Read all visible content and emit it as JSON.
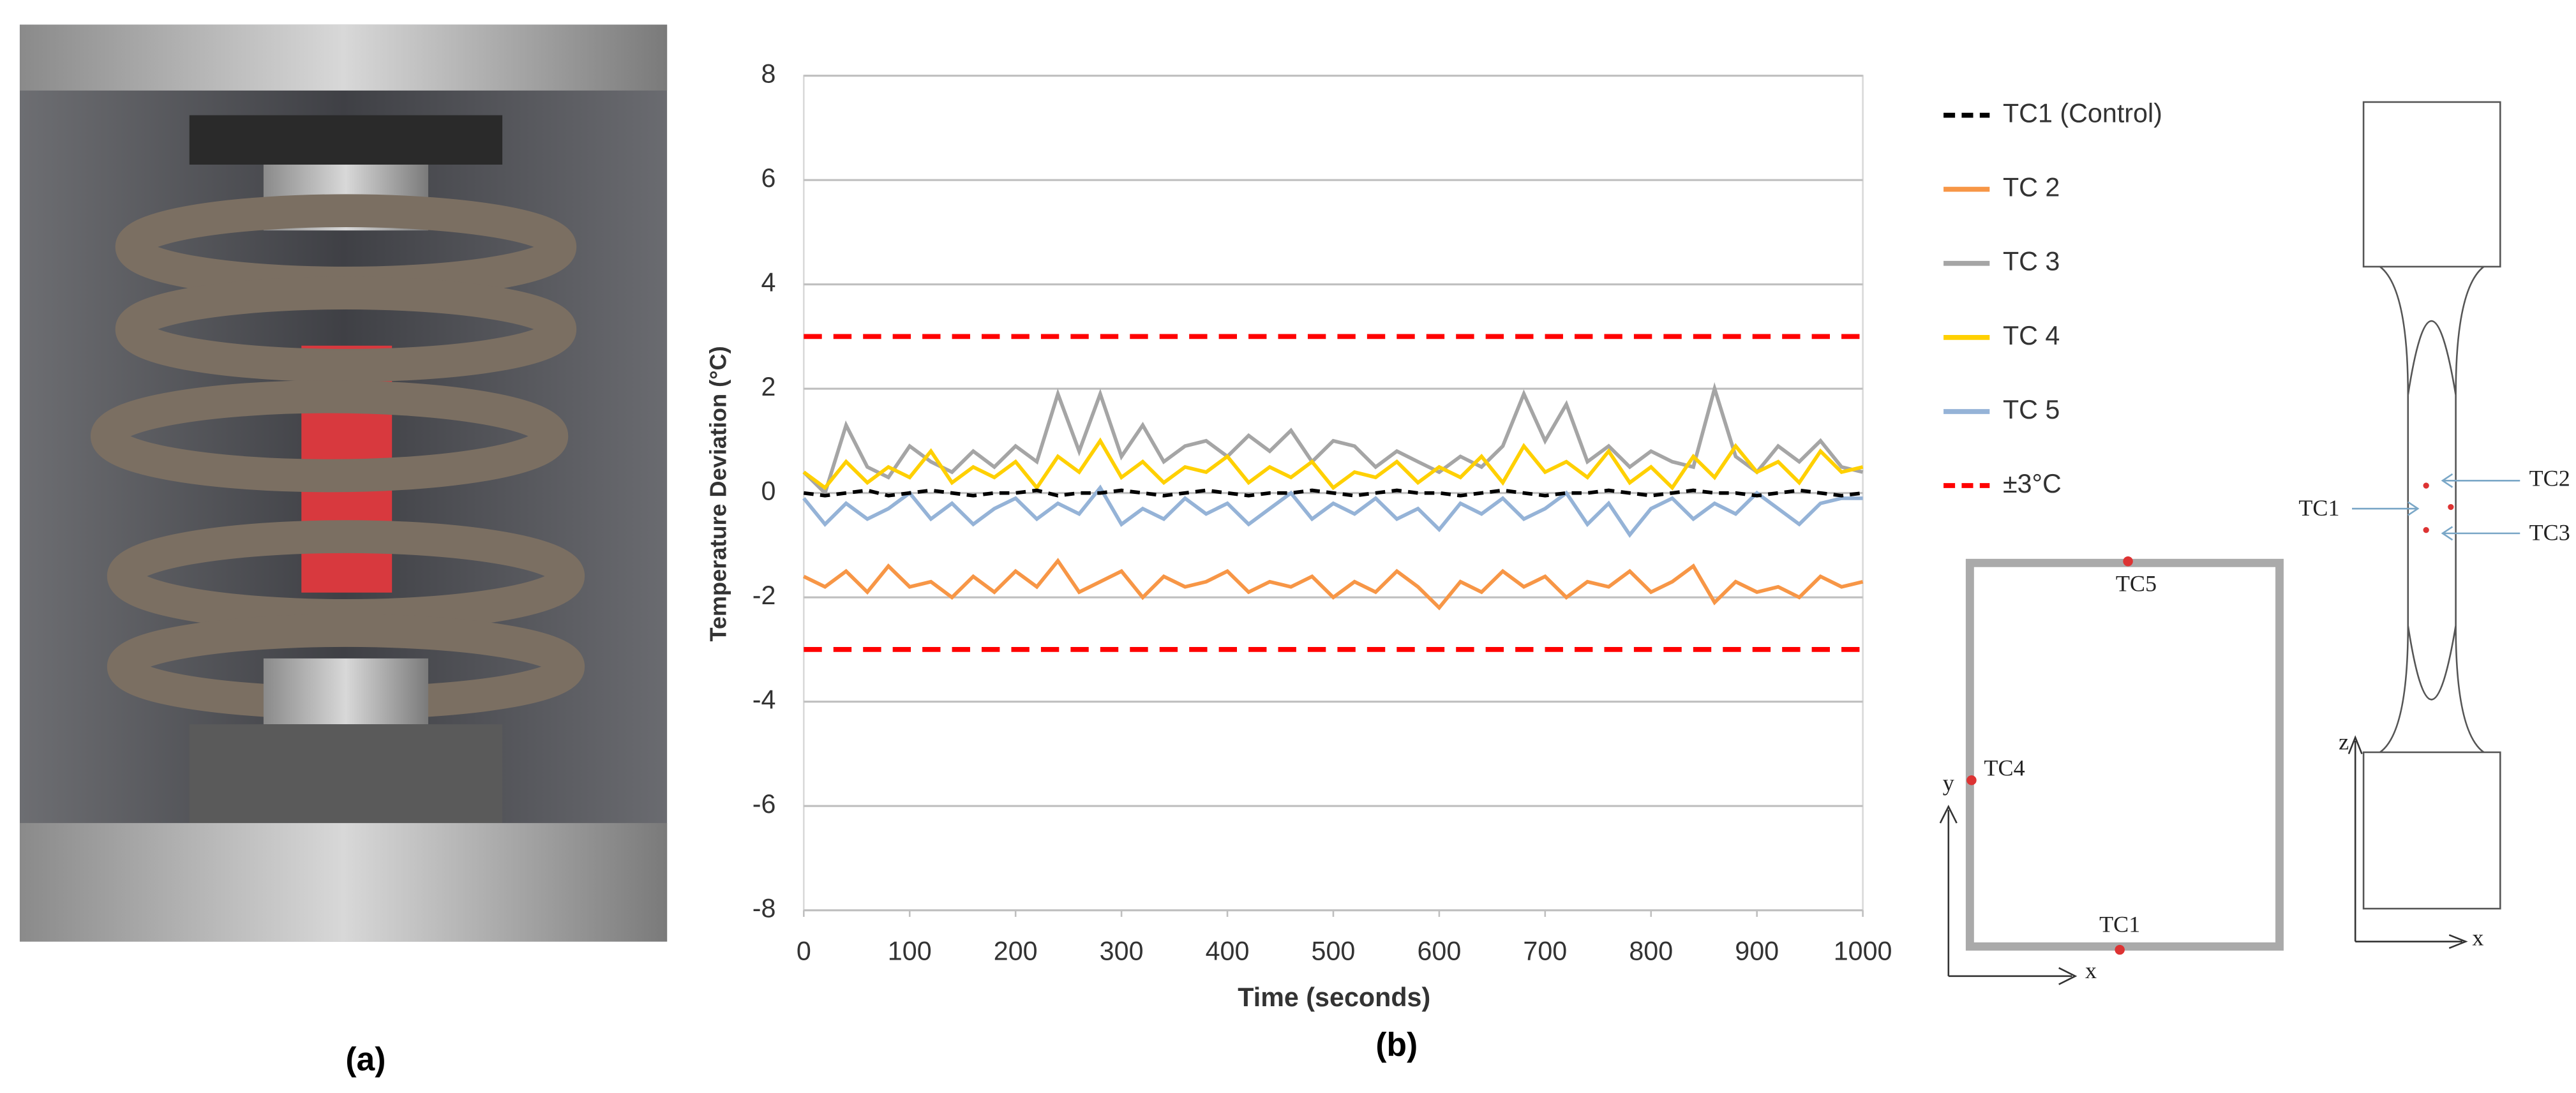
{
  "panels": [
    "(a)",
    "(b)"
  ],
  "chart_data": {
    "type": "line",
    "xlabel": "Time (seconds)",
    "ylabel": "Temperature Deviation (°C)",
    "xlim": [
      0,
      1000
    ],
    "ylim": [
      -8,
      8
    ],
    "xticks": [
      0,
      100,
      200,
      300,
      400,
      500,
      600,
      700,
      800,
      900,
      1000
    ],
    "yticks": [
      -8,
      -6,
      -4,
      -2,
      0,
      2,
      4,
      6,
      8
    ],
    "grid": true,
    "x": [
      0,
      20,
      40,
      60,
      80,
      100,
      120,
      140,
      160,
      180,
      200,
      220,
      240,
      260,
      280,
      300,
      320,
      340,
      360,
      380,
      400,
      420,
      440,
      460,
      480,
      500,
      520,
      540,
      560,
      580,
      600,
      620,
      640,
      660,
      680,
      700,
      720,
      740,
      760,
      780,
      800,
      820,
      840,
      860,
      880,
      900,
      920,
      940,
      960,
      980,
      1000
    ],
    "series": [
      {
        "name": "TC1 (Control)",
        "color": "#000000",
        "dashed": true,
        "values": [
          0,
          -0.05,
          0,
          0.05,
          -0.05,
          0,
          0.05,
          0,
          -0.05,
          0,
          0,
          0.05,
          -0.05,
          0,
          0,
          0.05,
          0,
          -0.05,
          0,
          0.05,
          0,
          -0.05,
          0,
          0,
          0.05,
          0,
          -0.05,
          0,
          0.05,
          0,
          0,
          -0.05,
          0,
          0.05,
          0,
          -0.05,
          0,
          0,
          0.05,
          0,
          -0.05,
          0,
          0.05,
          0,
          0,
          -0.05,
          0,
          0.05,
          0,
          -0.05,
          0
        ]
      },
      {
        "name": "TC 2",
        "color": "#f79646",
        "dashed": false,
        "values": [
          -1.6,
          -1.8,
          -1.5,
          -1.9,
          -1.4,
          -1.8,
          -1.7,
          -2.0,
          -1.6,
          -1.9,
          -1.5,
          -1.8,
          -1.3,
          -1.9,
          -1.7,
          -1.5,
          -2.0,
          -1.6,
          -1.8,
          -1.7,
          -1.5,
          -1.9,
          -1.7,
          -1.8,
          -1.6,
          -2.0,
          -1.7,
          -1.9,
          -1.5,
          -1.8,
          -2.2,
          -1.7,
          -1.9,
          -1.5,
          -1.8,
          -1.6,
          -2.0,
          -1.7,
          -1.8,
          -1.5,
          -1.9,
          -1.7,
          -1.4,
          -2.1,
          -1.7,
          -1.9,
          -1.8,
          -2.0,
          -1.6,
          -1.8,
          -1.7
        ]
      },
      {
        "name": "TC 3",
        "color": "#a5a5a5",
        "dashed": false,
        "values": [
          0.4,
          0,
          1.3,
          0.5,
          0.3,
          0.9,
          0.6,
          0.4,
          0.8,
          0.5,
          0.9,
          0.6,
          1.9,
          0.8,
          1.9,
          0.7,
          1.3,
          0.6,
          0.9,
          1.0,
          0.7,
          1.1,
          0.8,
          1.2,
          0.6,
          1.0,
          0.9,
          0.5,
          0.8,
          0.6,
          0.4,
          0.7,
          0.5,
          0.9,
          1.9,
          1.0,
          1.7,
          0.6,
          0.9,
          0.5,
          0.8,
          0.6,
          0.5,
          2.0,
          0.7,
          0.4,
          0.9,
          0.6,
          1.0,
          0.5,
          0.4
        ]
      },
      {
        "name": "TC 4",
        "color": "#ffd000",
        "dashed": false,
        "values": [
          0.4,
          0.1,
          0.6,
          0.2,
          0.5,
          0.3,
          0.8,
          0.2,
          0.5,
          0.3,
          0.6,
          0.1,
          0.7,
          0.4,
          1.0,
          0.3,
          0.6,
          0.2,
          0.5,
          0.4,
          0.7,
          0.2,
          0.5,
          0.3,
          0.6,
          0.1,
          0.4,
          0.3,
          0.6,
          0.2,
          0.5,
          0.3,
          0.7,
          0.2,
          0.9,
          0.4,
          0.6,
          0.3,
          0.8,
          0.2,
          0.5,
          0.1,
          0.7,
          0.3,
          0.9,
          0.4,
          0.6,
          0.2,
          0.8,
          0.4,
          0.5
        ]
      },
      {
        "name": "TC 5",
        "color": "#95b3d7",
        "dashed": false,
        "values": [
          -0.1,
          -0.6,
          -0.2,
          -0.5,
          -0.3,
          0,
          -0.5,
          -0.2,
          -0.6,
          -0.3,
          -0.1,
          -0.5,
          -0.2,
          -0.4,
          0.1,
          -0.6,
          -0.3,
          -0.5,
          -0.1,
          -0.4,
          -0.2,
          -0.6,
          -0.3,
          0,
          -0.5,
          -0.2,
          -0.4,
          -0.1,
          -0.5,
          -0.3,
          -0.7,
          -0.2,
          -0.4,
          -0.1,
          -0.5,
          -0.3,
          0,
          -0.6,
          -0.2,
          -0.8,
          -0.3,
          -0.1,
          -0.5,
          -0.2,
          -0.4,
          0,
          -0.3,
          -0.6,
          -0.2,
          -0.1,
          -0.1
        ]
      }
    ],
    "reference_lines": {
      "name": "±3°C",
      "color": "#ff0000",
      "values": [
        3,
        -3
      ]
    }
  },
  "diagrams": {
    "cross_section": {
      "labels": [
        "TC5",
        "TC4",
        "TC1"
      ],
      "axes": [
        "y",
        "x"
      ]
    },
    "specimen": {
      "labels": [
        "TC1",
        "TC2",
        "TC3"
      ],
      "axes": [
        "z",
        "x"
      ]
    }
  }
}
